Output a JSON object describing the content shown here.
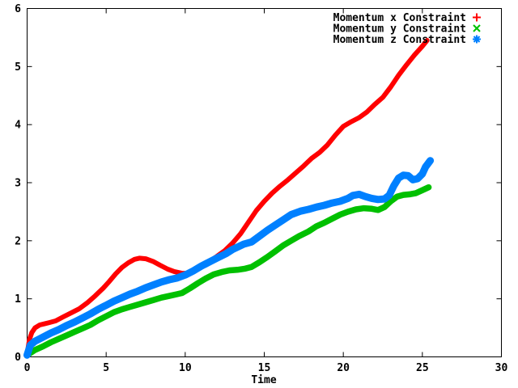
{
  "chart_data": {
    "type": "line",
    "title": "",
    "xlabel": "Time",
    "ylabel": "",
    "xlim": [
      0,
      30
    ],
    "ylim": [
      0,
      6
    ],
    "xticks": [
      0,
      5,
      10,
      15,
      20,
      25,
      30
    ],
    "yticks": [
      0,
      1,
      2,
      3,
      4,
      5,
      6
    ],
    "grid": false,
    "legend_position": "top-right-inside",
    "border_color": "#000000",
    "background_color": "#ffffff",
    "series": [
      {
        "name": "Momentum x Constraint",
        "color": "#ff0000",
        "marker": "plus",
        "points": [
          [
            0,
            0.05
          ],
          [
            0.15,
            0.3
          ],
          [
            0.3,
            0.42
          ],
          [
            0.5,
            0.5
          ],
          [
            0.8,
            0.55
          ],
          [
            1.1,
            0.57
          ],
          [
            1.4,
            0.59
          ],
          [
            1.8,
            0.62
          ],
          [
            2.3,
            0.69
          ],
          [
            2.8,
            0.76
          ],
          [
            3.3,
            0.83
          ],
          [
            3.8,
            0.93
          ],
          [
            4.3,
            1.05
          ],
          [
            4.8,
            1.18
          ],
          [
            5.2,
            1.3
          ],
          [
            5.6,
            1.43
          ],
          [
            6,
            1.54
          ],
          [
            6.4,
            1.62
          ],
          [
            6.8,
            1.68
          ],
          [
            7.1,
            1.7
          ],
          [
            7.5,
            1.69
          ],
          [
            8,
            1.64
          ],
          [
            8.4,
            1.58
          ],
          [
            8.9,
            1.51
          ],
          [
            9.3,
            1.47
          ],
          [
            9.8,
            1.44
          ],
          [
            10.2,
            1.44
          ],
          [
            10.6,
            1.49
          ],
          [
            11,
            1.56
          ],
          [
            11.5,
            1.64
          ],
          [
            12,
            1.73
          ],
          [
            12.5,
            1.83
          ],
          [
            13,
            1.96
          ],
          [
            13.5,
            2.12
          ],
          [
            14,
            2.32
          ],
          [
            14.5,
            2.52
          ],
          [
            15,
            2.68
          ],
          [
            15.5,
            2.82
          ],
          [
            16,
            2.94
          ],
          [
            16.5,
            3.05
          ],
          [
            17,
            3.17
          ],
          [
            17.5,
            3.29
          ],
          [
            18,
            3.42
          ],
          [
            18.5,
            3.52
          ],
          [
            19,
            3.65
          ],
          [
            19.5,
            3.82
          ],
          [
            20,
            3.97
          ],
          [
            20.5,
            4.05
          ],
          [
            21,
            4.12
          ],
          [
            21.5,
            4.22
          ],
          [
            22,
            4.35
          ],
          [
            22.5,
            4.47
          ],
          [
            23,
            4.65
          ],
          [
            23.5,
            4.85
          ],
          [
            24,
            5.03
          ],
          [
            24.5,
            5.2
          ],
          [
            25,
            5.35
          ],
          [
            25.3,
            5.45
          ]
        ]
      },
      {
        "name": "Momentum y Constraint",
        "color": "#00c000",
        "marker": "cross",
        "points": [
          [
            0,
            0.03
          ],
          [
            0.5,
            0.12
          ],
          [
            1,
            0.18
          ],
          [
            1.5,
            0.25
          ],
          [
            2,
            0.31
          ],
          [
            2.5,
            0.37
          ],
          [
            3,
            0.43
          ],
          [
            3.5,
            0.49
          ],
          [
            4,
            0.55
          ],
          [
            4.5,
            0.63
          ],
          [
            5,
            0.7
          ],
          [
            5.5,
            0.77
          ],
          [
            6,
            0.82
          ],
          [
            6.5,
            0.86
          ],
          [
            7,
            0.9
          ],
          [
            7.5,
            0.94
          ],
          [
            8,
            0.98
          ],
          [
            8.5,
            1.02
          ],
          [
            9,
            1.05
          ],
          [
            9.5,
            1.08
          ],
          [
            9.8,
            1.1
          ],
          [
            10.3,
            1.18
          ],
          [
            10.8,
            1.27
          ],
          [
            11.3,
            1.35
          ],
          [
            11.8,
            1.42
          ],
          [
            12.3,
            1.46
          ],
          [
            12.8,
            1.49
          ],
          [
            13.3,
            1.5
          ],
          [
            13.8,
            1.52
          ],
          [
            14.2,
            1.55
          ],
          [
            14.7,
            1.63
          ],
          [
            15.2,
            1.72
          ],
          [
            15.7,
            1.82
          ],
          [
            16.2,
            1.92
          ],
          [
            16.7,
            2
          ],
          [
            17.2,
            2.08
          ],
          [
            17.8,
            2.16
          ],
          [
            18.3,
            2.25
          ],
          [
            18.8,
            2.31
          ],
          [
            19.3,
            2.38
          ],
          [
            19.8,
            2.45
          ],
          [
            20.3,
            2.5
          ],
          [
            20.8,
            2.54
          ],
          [
            21.3,
            2.56
          ],
          [
            21.8,
            2.55
          ],
          [
            22.2,
            2.53
          ],
          [
            22.6,
            2.58
          ],
          [
            23,
            2.68
          ],
          [
            23.4,
            2.76
          ],
          [
            23.8,
            2.79
          ],
          [
            24.2,
            2.8
          ],
          [
            24.6,
            2.82
          ],
          [
            25,
            2.87
          ],
          [
            25.4,
            2.92
          ]
        ]
      },
      {
        "name": "Momentum z Constraint",
        "color": "#0080ff",
        "marker": "asterisk",
        "points": [
          [
            0,
            0.03
          ],
          [
            0.2,
            0.2
          ],
          [
            0.5,
            0.27
          ],
          [
            1,
            0.34
          ],
          [
            1.5,
            0.41
          ],
          [
            2,
            0.47
          ],
          [
            2.5,
            0.54
          ],
          [
            3,
            0.6
          ],
          [
            3.5,
            0.67
          ],
          [
            4,
            0.74
          ],
          [
            4.5,
            0.82
          ],
          [
            5,
            0.89
          ],
          [
            5.5,
            0.96
          ],
          [
            6,
            1.02
          ],
          [
            6.5,
            1.08
          ],
          [
            7,
            1.13
          ],
          [
            7.5,
            1.19
          ],
          [
            8,
            1.24
          ],
          [
            8.5,
            1.29
          ],
          [
            9,
            1.33
          ],
          [
            9.5,
            1.36
          ],
          [
            10,
            1.41
          ],
          [
            10.5,
            1.48
          ],
          [
            11,
            1.56
          ],
          [
            11.5,
            1.63
          ],
          [
            12,
            1.7
          ],
          [
            12.6,
            1.78
          ],
          [
            13,
            1.85
          ],
          [
            13.7,
            1.94
          ],
          [
            14.2,
            1.98
          ],
          [
            14.7,
            2.08
          ],
          [
            15.2,
            2.18
          ],
          [
            15.7,
            2.27
          ],
          [
            16.2,
            2.36
          ],
          [
            16.7,
            2.45
          ],
          [
            17.3,
            2.51
          ],
          [
            17.8,
            2.54
          ],
          [
            18.3,
            2.58
          ],
          [
            18.8,
            2.61
          ],
          [
            19.3,
            2.65
          ],
          [
            19.8,
            2.68
          ],
          [
            20.3,
            2.73
          ],
          [
            20.6,
            2.78
          ],
          [
            21,
            2.8
          ],
          [
            21.4,
            2.76
          ],
          [
            21.8,
            2.73
          ],
          [
            22.2,
            2.71
          ],
          [
            22.6,
            2.72
          ],
          [
            22.9,
            2.78
          ],
          [
            23.2,
            2.95
          ],
          [
            23.5,
            3.08
          ],
          [
            23.8,
            3.13
          ],
          [
            24.1,
            3.12
          ],
          [
            24.4,
            3.05
          ],
          [
            24.7,
            3.07
          ],
          [
            25,
            3.15
          ],
          [
            25.2,
            3.27
          ],
          [
            25.5,
            3.38
          ]
        ]
      }
    ]
  }
}
